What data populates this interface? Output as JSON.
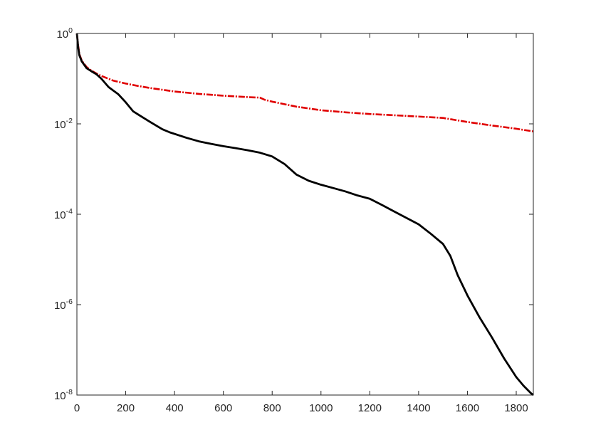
{
  "chart_data": {
    "type": "line",
    "title": "",
    "xlabel": "",
    "ylabel": "",
    "xlim": [
      0,
      1870
    ],
    "ylim": [
      1e-08,
      1
    ],
    "y_scale": "log",
    "grid": false,
    "box": true,
    "x_ticks": [
      0,
      200,
      400,
      600,
      800,
      1000,
      1200,
      1400,
      1600,
      1800
    ],
    "y_ticks": [
      {
        "value": 1,
        "base": "10",
        "exponent": "0"
      },
      {
        "value": 0.01,
        "base": "10",
        "exponent": "-2"
      },
      {
        "value": 0.0001,
        "base": "10",
        "exponent": "-4"
      },
      {
        "value": 1e-06,
        "base": "10",
        "exponent": "-6"
      },
      {
        "value": 1e-08,
        "base": "10",
        "exponent": "-8"
      }
    ],
    "series": [
      {
        "color": "#e00000",
        "style": "dash-dot",
        "x": [
          0,
          5,
          10,
          20,
          40,
          60,
          80,
          100,
          150,
          200,
          250,
          300,
          400,
          500,
          600,
          700,
          750,
          770,
          800,
          900,
          1000,
          1100,
          1200,
          1300,
          1400,
          1500,
          1600,
          1700,
          1800,
          1870
        ],
        "y": [
          1,
          0.55,
          0.35,
          0.25,
          0.18,
          0.15,
          0.13,
          0.115,
          0.09,
          0.078,
          0.069,
          0.062,
          0.052,
          0.046,
          0.042,
          0.039,
          0.038,
          0.034,
          0.031,
          0.024,
          0.02,
          0.018,
          0.0165,
          0.0155,
          0.0145,
          0.0135,
          0.011,
          0.0092,
          0.0078,
          0.0068
        ]
      },
      {
        "color": "#000000",
        "style": "solid",
        "x": [
          0,
          5,
          10,
          20,
          40,
          60,
          80,
          100,
          130,
          170,
          200,
          230,
          260,
          300,
          350,
          380,
          450,
          500,
          550,
          600,
          650,
          700,
          750,
          800,
          850,
          900,
          950,
          1000,
          1050,
          1100,
          1150,
          1200,
          1250,
          1300,
          1350,
          1400,
          1450,
          1500,
          1530,
          1560,
          1600,
          1650,
          1700,
          1750,
          1800,
          1830,
          1860,
          1870
        ],
        "y": [
          1,
          0.5,
          0.33,
          0.24,
          0.17,
          0.145,
          0.125,
          0.1,
          0.065,
          0.045,
          0.03,
          0.019,
          0.015,
          0.011,
          0.0076,
          0.0065,
          0.0049,
          0.0041,
          0.0036,
          0.0032,
          0.0029,
          0.0026,
          0.0023,
          0.0019,
          0.0013,
          0.00075,
          0.00055,
          0.00045,
          0.00038,
          0.00032,
          0.00026,
          0.00022,
          0.00016,
          0.000115,
          8.3e-05,
          6e-05,
          3.7e-05,
          2.2e-05,
          1.2e-05,
          4.5e-06,
          1.6e-06,
          5.2e-07,
          1.9e-07,
          6.5e-08,
          2.5e-08,
          1.6e-08,
          1.1e-08,
          1e-08
        ]
      }
    ]
  }
}
